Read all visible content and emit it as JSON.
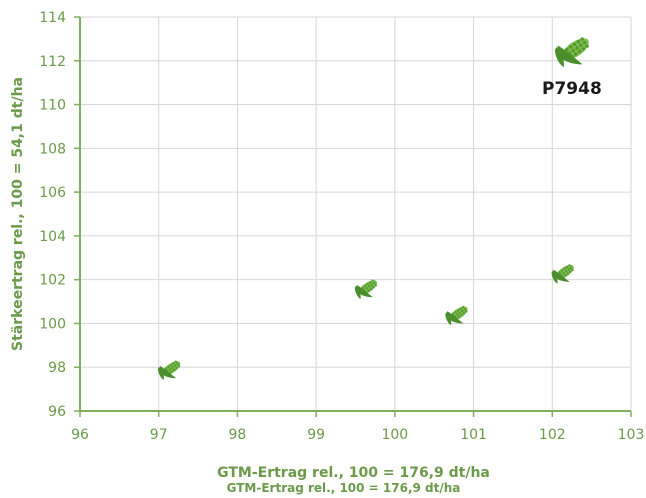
{
  "chart_data": {
    "type": "scatter",
    "title": "",
    "xlabel": "GTM-Ertrag rel., 100 = 176,9 dt/ha",
    "xlabel_secondary": "GTM-Ertrag rel., 100 = 176,9 dt/ha",
    "ylabel": "Stärkeertrag rel., 100 = 54,1 dt/ha",
    "xlim": [
      96,
      103
    ],
    "ylim": [
      96,
      114
    ],
    "x_ticks": [
      "96",
      "97",
      "98",
      "99",
      "100",
      "101",
      "102",
      "103"
    ],
    "y_ticks": [
      "96",
      "98",
      "100",
      "102",
      "104",
      "106",
      "108",
      "110",
      "112",
      "114"
    ],
    "grid": true,
    "marker": "corn-cob-icon",
    "points": [
      {
        "x": 97.1,
        "y": 97.8,
        "label": "",
        "highlight": false
      },
      {
        "x": 99.6,
        "y": 101.5,
        "label": "",
        "highlight": false
      },
      {
        "x": 100.75,
        "y": 100.3,
        "label": "",
        "highlight": false
      },
      {
        "x": 102.1,
        "y": 102.2,
        "label": "",
        "highlight": false
      },
      {
        "x": 102.2,
        "y": 112.3,
        "label": "P7948",
        "highlight": true
      }
    ],
    "colors": {
      "axis": "#7fae5c",
      "grid": "#d6d6d6",
      "text": "#6b9a4a",
      "marker_dark": "#4a8f2b",
      "marker_light": "#7fbf4e",
      "label": "#1a1a1a"
    }
  }
}
